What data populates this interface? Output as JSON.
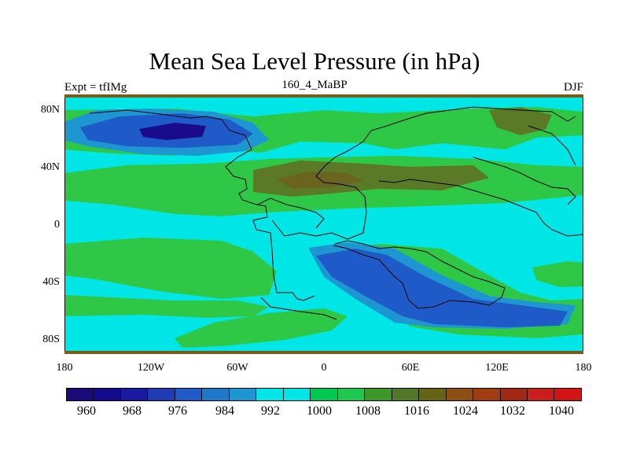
{
  "title": "Mean Sea Level Pressure (in hPa)",
  "experiment": "Expt = tfIMg",
  "case": "160_4_MaBP",
  "season": "DJF",
  "axes": {
    "y_ticks": [
      "80N",
      "40N",
      "0",
      "40S",
      "80S"
    ],
    "x_ticks": [
      "180",
      "120W",
      "60W",
      "0",
      "60E",
      "120E",
      "180"
    ]
  },
  "colorbar": {
    "colors": [
      "#1a0a7a",
      "#140a8c",
      "#1a1aa0",
      "#1f3cb4",
      "#1f5ac8",
      "#1f78c8",
      "#1e96d2",
      "#00e6e6",
      "#00e6e6",
      "#00c850",
      "#1ec850",
      "#3c9628",
      "#507828",
      "#646414",
      "#8c5014",
      "#a03c14",
      "#a02814",
      "#c81e1e",
      "#d21414"
    ],
    "labels": [
      "960",
      "968",
      "976",
      "984",
      "992",
      "1000",
      "1008",
      "1016",
      "1024",
      "1032",
      "1040"
    ]
  },
  "palette": {
    "cyan": "#00e6e6",
    "green": "#2ec846",
    "olive": "#5a7a28",
    "brown": "#6a6420",
    "blue": "#1e5ac8",
    "lightblue": "#1e96d2",
    "navy": "#1a0a8c"
  }
}
